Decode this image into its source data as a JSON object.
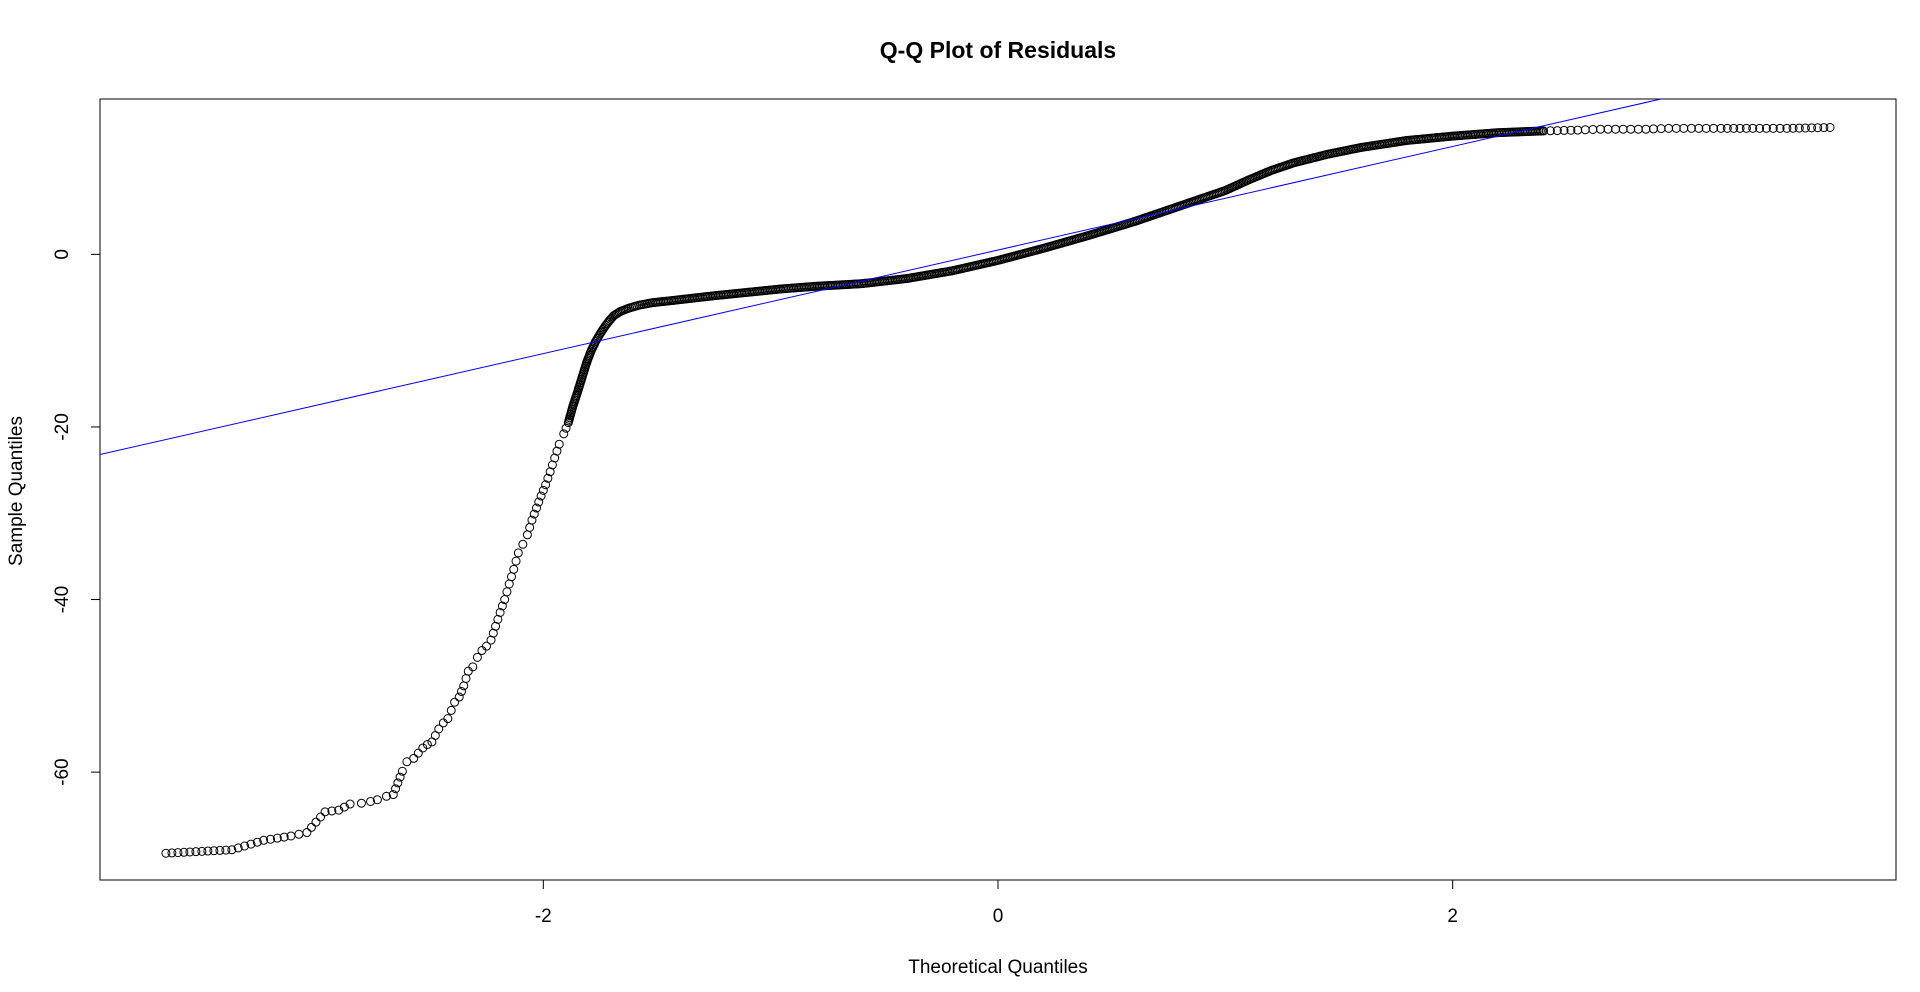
{
  "chart_data": {
    "type": "scatter",
    "title": "Q-Q Plot of Residuals",
    "xlabel": "Theoretical Quantiles",
    "ylabel": "Sample Quantiles",
    "xlim": [
      -3.95,
      3.95
    ],
    "ylim": [
      -72.5,
      18
    ],
    "x_ticks": [
      -2,
      0,
      2
    ],
    "y_ticks": [
      -60,
      -40,
      -20,
      0
    ],
    "x_tick_labels": [
      "-2",
      "0",
      "2"
    ],
    "y_tick_labels": [
      "-60",
      "-40",
      "-20",
      "0"
    ],
    "grid": false,
    "legend": "none",
    "colors": {
      "points": "#000000",
      "reference_line": "#0000ff",
      "frame": "#000000"
    },
    "reference_line": {
      "intercept": 0.5,
      "slope": 6.0
    },
    "series": [
      {
        "points": [
          [
            -3.66,
            -69.4
          ],
          [
            -3.37,
            -69.0
          ],
          [
            -3.23,
            -67.9
          ],
          [
            -3.11,
            -67.4
          ],
          [
            -3.04,
            -67.0
          ],
          [
            -2.96,
            -64.6
          ],
          [
            -2.9,
            -64.4
          ],
          [
            -2.85,
            -63.7
          ],
          [
            -2.8,
            -63.6
          ],
          [
            -2.76,
            -63.4
          ],
          [
            -2.73,
            -63.2
          ],
          [
            -2.69,
            -62.8
          ],
          [
            -2.66,
            -62.6
          ],
          [
            -2.62,
            -59.9
          ],
          [
            -2.6,
            -58.8
          ],
          [
            -2.57,
            -58.4
          ],
          [
            -2.53,
            -57.2
          ],
          [
            -2.51,
            -56.8
          ],
          [
            -2.49,
            -56.5
          ],
          [
            -2.46,
            -55.0
          ],
          [
            -2.44,
            -54.3
          ],
          [
            -2.42,
            -53.8
          ],
          [
            -2.39,
            -51.9
          ],
          [
            -2.37,
            -51.3
          ],
          [
            -2.35,
            -50.0
          ],
          [
            -2.33,
            -48.3
          ],
          [
            -2.31,
            -47.8
          ],
          [
            -2.29,
            -46.7
          ],
          [
            -2.27,
            -45.9
          ],
          [
            -2.25,
            -45.4
          ],
          [
            -2.23,
            -44.7
          ],
          [
            -2.21,
            -43.1
          ],
          [
            -2.19,
            -41.5
          ],
          [
            -2.17,
            -40.0
          ],
          [
            -2.15,
            -38.2
          ],
          [
            -2.13,
            -36.5
          ],
          [
            -2.11,
            -34.6
          ],
          [
            -2.09,
            -33.6
          ],
          [
            -2.07,
            -32.5
          ],
          [
            -2.05,
            -30.8
          ],
          [
            -2.03,
            -29.4
          ],
          [
            -2.01,
            -28.0
          ],
          [
            -1.99,
            -26.7
          ],
          [
            -1.97,
            -25.2
          ],
          [
            -1.95,
            -23.6
          ],
          [
            -1.93,
            -22.0
          ],
          [
            -1.91,
            -20.8
          ],
          [
            -1.89,
            -19.5
          ],
          [
            -1.87,
            -17.6
          ],
          [
            -1.85,
            -16.0
          ],
          [
            -1.83,
            -14.3
          ],
          [
            -1.81,
            -12.6
          ],
          [
            -1.79,
            -11.2
          ],
          [
            -1.77,
            -10.1
          ],
          [
            -1.75,
            -9.2
          ],
          [
            -1.73,
            -8.4
          ],
          [
            -1.71,
            -7.7
          ],
          [
            -1.69,
            -7.1
          ],
          [
            -1.66,
            -6.6
          ],
          [
            -1.62,
            -6.2
          ],
          [
            -1.58,
            -5.9
          ],
          [
            -1.52,
            -5.6
          ],
          [
            -1.45,
            -5.4
          ],
          [
            -1.35,
            -5.1
          ],
          [
            -1.25,
            -4.8
          ],
          [
            -1.1,
            -4.4
          ],
          [
            -0.95,
            -4.0
          ],
          [
            -0.8,
            -3.7
          ],
          [
            -0.6,
            -3.4
          ],
          [
            -0.4,
            -2.8
          ],
          [
            -0.2,
            -1.9
          ],
          [
            0.0,
            -0.7
          ],
          [
            0.2,
            0.7
          ],
          [
            0.4,
            2.2
          ],
          [
            0.6,
            3.8
          ],
          [
            0.8,
            5.6
          ],
          [
            1.0,
            7.4
          ],
          [
            1.1,
            8.6
          ],
          [
            1.2,
            9.7
          ],
          [
            1.3,
            10.6
          ],
          [
            1.45,
            11.6
          ],
          [
            1.6,
            12.4
          ],
          [
            1.8,
            13.2
          ],
          [
            2.0,
            13.7
          ],
          [
            2.2,
            14.1
          ],
          [
            2.4,
            14.3
          ],
          [
            2.55,
            14.4
          ],
          [
            2.65,
            14.5
          ],
          [
            2.75,
            14.5
          ],
          [
            2.85,
            14.5
          ],
          [
            2.95,
            14.6
          ],
          [
            3.05,
            14.6
          ],
          [
            3.18,
            14.6
          ],
          [
            3.32,
            14.6
          ],
          [
            3.47,
            14.6
          ],
          [
            3.66,
            14.7
          ]
        ]
      }
    ]
  }
}
